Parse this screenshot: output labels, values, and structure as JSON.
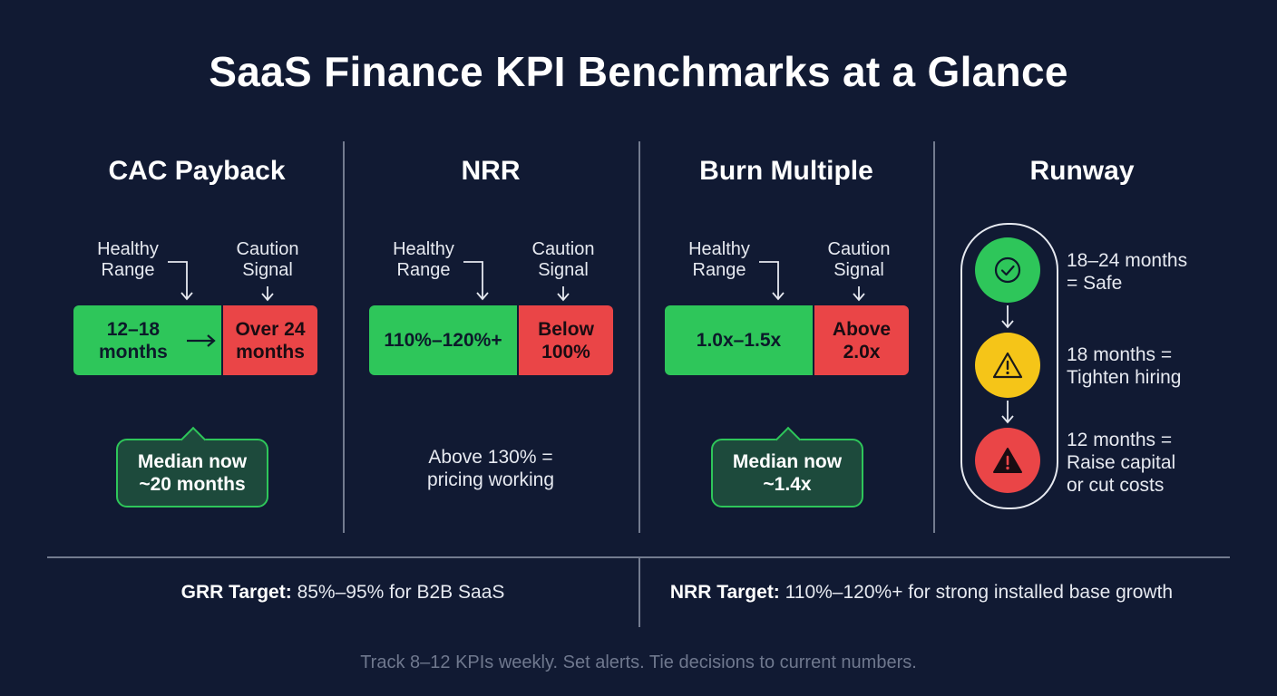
{
  "title": "SaaS Finance KPI Benchmarks at a Glance",
  "labels": {
    "healthy": [
      "Healthy",
      "Range"
    ],
    "caution": [
      "Caution",
      "Signal"
    ]
  },
  "cac": {
    "title": "CAC Payback",
    "healthy": [
      "12–18",
      "months"
    ],
    "caution": [
      "Over 24",
      "months"
    ],
    "callout": [
      "Median now",
      "~20 months"
    ]
  },
  "nrr": {
    "title": "NRR",
    "healthy": "110%–120%+",
    "caution": [
      "Below",
      "100%"
    ],
    "note": [
      "Above 130% =",
      "pricing working"
    ]
  },
  "burn": {
    "title": "Burn Multiple",
    "healthy": "1.0x–1.5x",
    "caution": [
      "Above",
      "2.0x"
    ],
    "callout": [
      "Median now",
      "~1.4x"
    ]
  },
  "runway": {
    "title": "Runway",
    "levels": [
      {
        "lines": [
          "18–24 months",
          "= Safe"
        ],
        "icon": "check-icon",
        "color": "#2ec65a"
      },
      {
        "lines": [
          "18 months =",
          "Tighten hiring"
        ],
        "icon": "warning-icon",
        "color": "#f5c518"
      },
      {
        "lines": [
          "12 months =",
          "Raise capital",
          "or cut costs"
        ],
        "icon": "alert-icon",
        "color": "#ea4547"
      }
    ]
  },
  "bottom": {
    "grr_label": "GRR Target:",
    "grr_text": " 85%–95% for B2B SaaS",
    "nrr_label": "NRR Target:",
    "nrr_text": " 110%–120%+ for strong installed base growth"
  },
  "footer": "Track 8–12 KPIs weekly. Set alerts. Tie decisions to current numbers."
}
